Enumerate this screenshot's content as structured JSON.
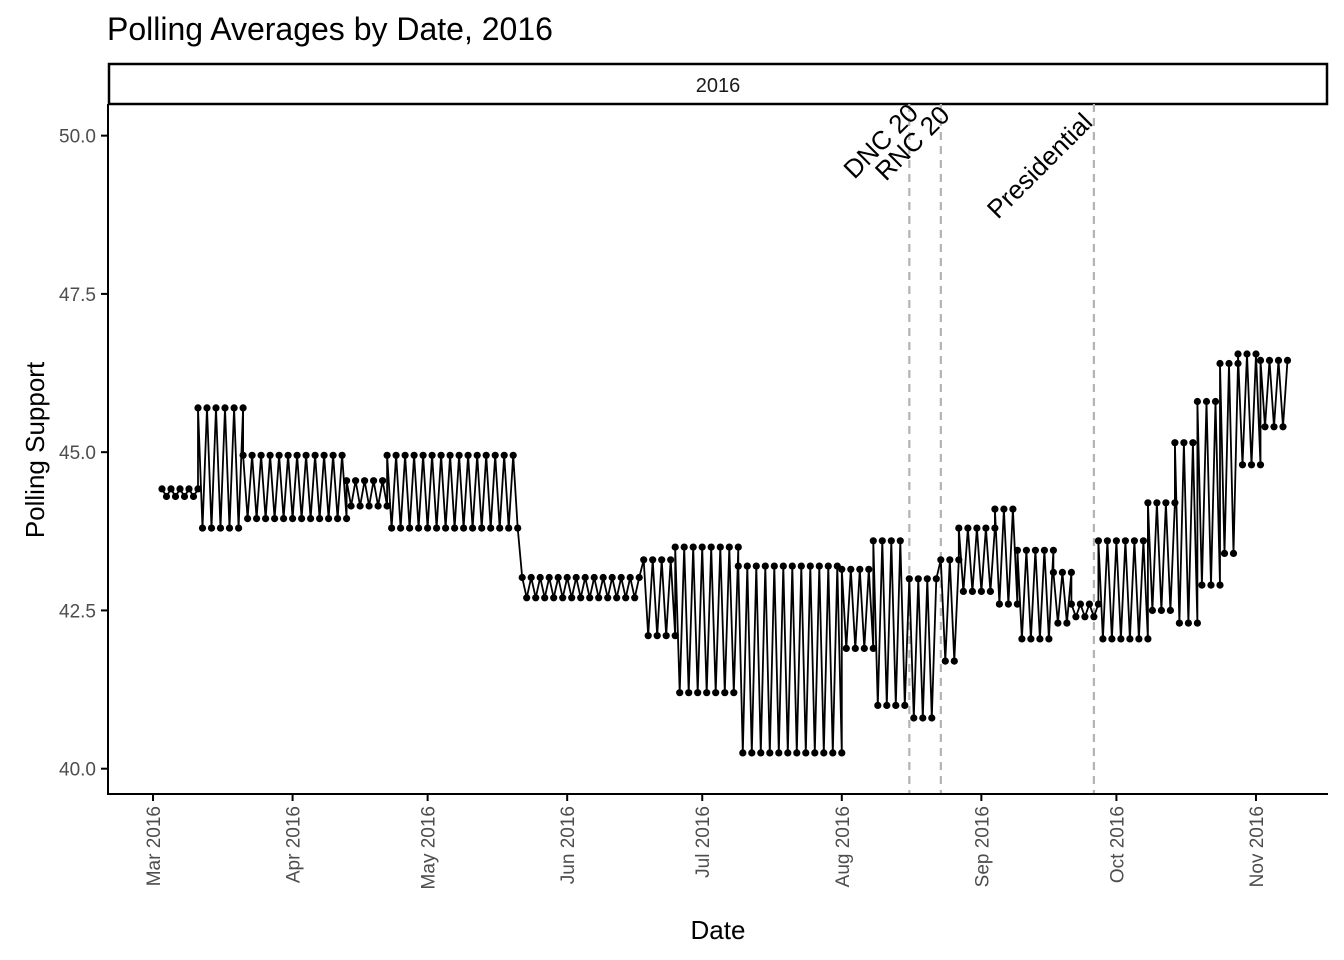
{
  "chart_data": {
    "type": "line",
    "title": "Polling Averages by Date, 2016",
    "facet_label": "2016",
    "xlabel": "Date",
    "ylabel": "Polling Support",
    "xlim": [
      "2016-02-20",
      "2016-11-17"
    ],
    "ylim": [
      39.6,
      50.5
    ],
    "y_ticks": [
      40.0,
      42.5,
      45.0,
      47.5,
      50.0
    ],
    "y_tick_labels": [
      "40.0",
      "42.5",
      "45.0",
      "47.5",
      "50.0"
    ],
    "x_ticks": [
      "2016-03-01",
      "2016-04-01",
      "2016-05-01",
      "2016-06-01",
      "2016-07-01",
      "2016-08-01",
      "2016-09-01",
      "2016-10-01",
      "2016-11-01"
    ],
    "x_tick_labels": [
      "Mar 2016",
      "Apr 2016",
      "May 2016",
      "Jun 2016",
      "Jul 2016",
      "Aug 2016",
      "Sep 2016",
      "Oct 2016",
      "Nov 2016"
    ],
    "grid": false,
    "legend": "none",
    "series_color": "#000000",
    "event_line_color": "#b3b3b3",
    "events": [
      {
        "label": "DNC 20",
        "date": "2016-08-16"
      },
      {
        "label": "RNC 20",
        "date": "2016-08-23"
      },
      {
        "label": "Presidential",
        "date": "2016-09-26"
      }
    ],
    "series": [
      {
        "segments": [
          {
            "start": "2016-03-03",
            "end": "2016-03-11",
            "high": 44.42,
            "low": 44.3
          },
          {
            "start": "2016-03-11",
            "end": "2016-03-21",
            "high": 45.7,
            "low": 43.8
          },
          {
            "start": "2016-03-21",
            "end": "2016-04-13",
            "high": 44.95,
            "low": 43.95
          },
          {
            "start": "2016-04-13",
            "end": "2016-04-22",
            "high": 44.55,
            "low": 44.15
          },
          {
            "start": "2016-04-22",
            "end": "2016-05-21",
            "high": 44.95,
            "low": 43.8
          },
          {
            "start": "2016-05-22",
            "end": "2016-06-17",
            "high": 43.02,
            "low": 42.7
          },
          {
            "start": "2016-06-18",
            "end": "2016-06-25",
            "high": 43.3,
            "low": 42.1
          },
          {
            "start": "2016-06-25",
            "end": "2016-07-09",
            "high": 43.5,
            "low": 41.2
          },
          {
            "start": "2016-07-09",
            "end": "2016-08-01",
            "high": 43.2,
            "low": 40.25
          },
          {
            "start": "2016-08-01",
            "end": "2016-08-08",
            "high": 43.15,
            "low": 41.9
          },
          {
            "start": "2016-08-08",
            "end": "2016-08-15",
            "high": 43.6,
            "low": 41.0
          },
          {
            "start": "2016-08-16",
            "end": "2016-08-22",
            "high": 43.0,
            "low": 40.8
          },
          {
            "start": "2016-08-23",
            "end": "2016-08-27",
            "high": 43.3,
            "low": 41.7
          },
          {
            "start": "2016-08-27",
            "end": "2016-09-04",
            "high": 43.8,
            "low": 42.8
          },
          {
            "start": "2016-09-04",
            "end": "2016-09-09",
            "high": 44.1,
            "low": 42.6
          },
          {
            "start": "2016-09-09",
            "end": "2016-09-17",
            "high": 43.45,
            "low": 42.05
          },
          {
            "start": "2016-09-17",
            "end": "2016-09-21",
            "high": 43.1,
            "low": 42.3
          },
          {
            "start": "2016-09-21",
            "end": "2016-09-27",
            "high": 42.6,
            "low": 42.4
          },
          {
            "start": "2016-09-27",
            "end": "2016-10-08",
            "high": 43.6,
            "low": 42.05
          },
          {
            "start": "2016-10-08",
            "end": "2016-10-14",
            "high": 44.2,
            "low": 42.5
          },
          {
            "start": "2016-10-14",
            "end": "2016-10-19",
            "high": 45.15,
            "low": 42.3
          },
          {
            "start": "2016-10-19",
            "end": "2016-10-24",
            "high": 45.8,
            "low": 42.9
          },
          {
            "start": "2016-10-24",
            "end": "2016-10-28",
            "high": 46.4,
            "low": 43.4
          },
          {
            "start": "2016-10-28",
            "end": "2016-11-02",
            "high": 46.55,
            "low": 44.8
          },
          {
            "start": "2016-11-02",
            "end": "2016-11-08",
            "high": 46.45,
            "low": 45.4
          }
        ]
      }
    ]
  }
}
